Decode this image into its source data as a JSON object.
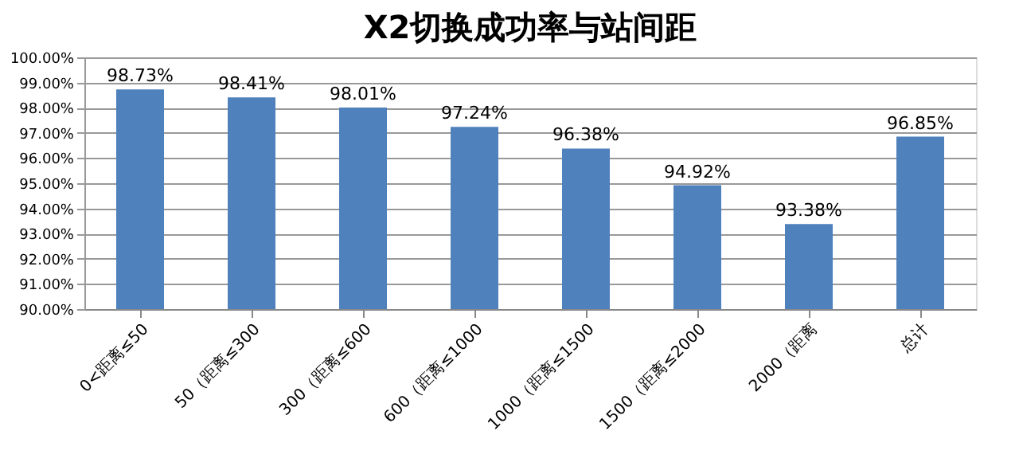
{
  "chart_data": {
    "type": "bar",
    "title": "X2切换成功率与站间距",
    "categories": [
      "0<距离≤50",
      "50（距离≤300",
      "300（距离≤600",
      "600（距离≤1000",
      "1000（距离≤1500",
      "1500（距离≤2000",
      "2000（距离",
      "总计"
    ],
    "values": [
      98.73,
      98.41,
      98.01,
      97.24,
      96.38,
      94.92,
      93.38,
      96.85
    ],
    "value_labels": [
      "98.73%",
      "98.41%",
      "98.01%",
      "97.24%",
      "96.38%",
      "94.92%",
      "93.38%",
      "96.85%"
    ],
    "color": "#4f81bd",
    "ylim": [
      90,
      100
    ],
    "yticks": [
      {
        "value": 90,
        "label": "90.00%"
      },
      {
        "value": 91,
        "label": "91.00%"
      },
      {
        "value": 92,
        "label": "92.00%"
      },
      {
        "value": 93,
        "label": "93.00%"
      },
      {
        "value": 94,
        "label": "94.00%"
      },
      {
        "value": 95,
        "label": "95.00%"
      },
      {
        "value": 96,
        "label": "96.00%"
      },
      {
        "value": 97,
        "label": "97.00%"
      },
      {
        "value": 98,
        "label": "98.00%"
      },
      {
        "value": 99,
        "label": "99.00%"
      },
      {
        "value": 100,
        "label": "100.00%"
      }
    ],
    "grid": "y"
  }
}
